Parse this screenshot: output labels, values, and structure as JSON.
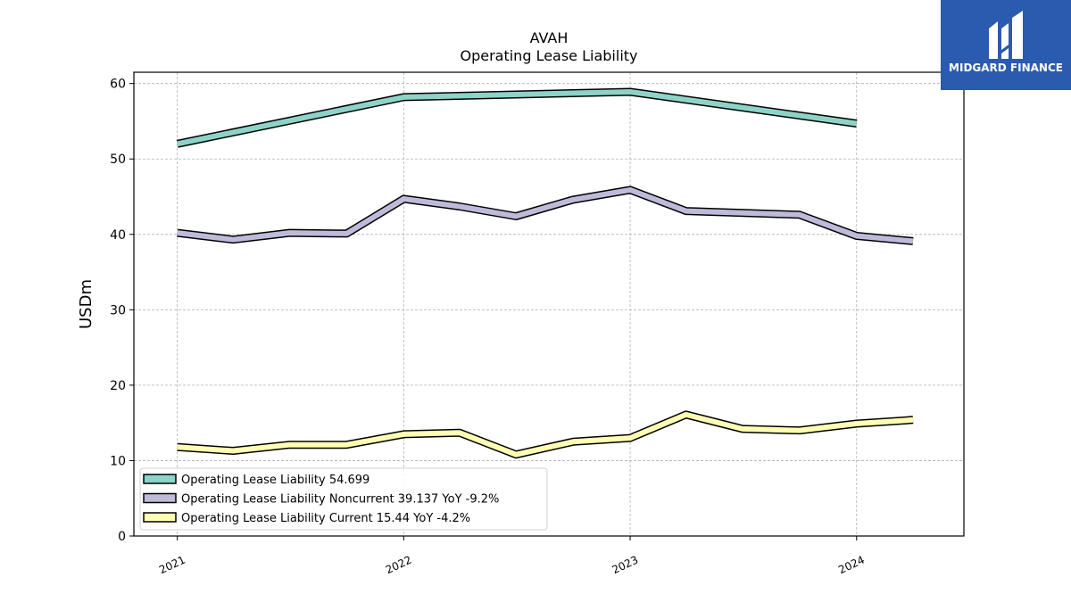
{
  "logo": {
    "text": "MIDGARD FINANCE"
  },
  "chart_data": {
    "type": "line",
    "title": "AVAH",
    "subtitle": "Operating Lease Liability",
    "xlabel": "",
    "ylabel": "USDm",
    "ylim": [
      0,
      61.5
    ],
    "yticks": [
      0,
      10,
      20,
      30,
      40,
      50,
      60
    ],
    "xlim": [
      "2020-10-23",
      "2024-06-22"
    ],
    "xticks": [
      {
        "date": "2021-01-01",
        "label": "2021"
      },
      {
        "date": "2022-01-01",
        "label": "2022"
      },
      {
        "date": "2023-01-01",
        "label": "2023"
      },
      {
        "date": "2024-01-01",
        "label": "2024"
      }
    ],
    "grid": true,
    "legend_position": "lower-left",
    "series": [
      {
        "name": "Operating Lease Liability  54.699",
        "color": "#8dd3c7",
        "points": [
          {
            "x": "2021-01-01",
            "y": 52.0
          },
          {
            "x": "2022-01-01",
            "y": 58.2
          },
          {
            "x": "2023-01-01",
            "y": 58.9
          },
          {
            "x": "2024-01-01",
            "y": 54.7
          }
        ]
      },
      {
        "name": "Operating Lease Liability Noncurrent  39.137 YoY -9.2%",
        "color": "#bebada",
        "points": [
          {
            "x": "2021-01-01",
            "y": 40.2
          },
          {
            "x": "2021-04-01",
            "y": 39.3
          },
          {
            "x": "2021-07-01",
            "y": 40.2
          },
          {
            "x": "2021-10-01",
            "y": 40.1
          },
          {
            "x": "2022-01-01",
            "y": 44.7
          },
          {
            "x": "2022-04-01",
            "y": 43.7
          },
          {
            "x": "2022-07-01",
            "y": 42.4
          },
          {
            "x": "2022-10-01",
            "y": 44.6
          },
          {
            "x": "2023-01-01",
            "y": 45.9
          },
          {
            "x": "2023-04-01",
            "y": 43.1
          },
          {
            "x": "2023-10-01",
            "y": 42.6
          },
          {
            "x": "2024-01-01",
            "y": 39.8
          },
          {
            "x": "2024-04-01",
            "y": 39.1
          }
        ]
      },
      {
        "name": "Operating Lease Liability Current  15.44 YoY -4.2%",
        "color": "#ffffb3",
        "points": [
          {
            "x": "2021-01-01",
            "y": 11.8
          },
          {
            "x": "2021-04-01",
            "y": 11.3
          },
          {
            "x": "2021-07-01",
            "y": 12.1
          },
          {
            "x": "2021-10-01",
            "y": 12.1
          },
          {
            "x": "2022-01-01",
            "y": 13.5
          },
          {
            "x": "2022-04-01",
            "y": 13.7
          },
          {
            "x": "2022-07-01",
            "y": 10.8
          },
          {
            "x": "2022-10-01",
            "y": 12.5
          },
          {
            "x": "2023-01-01",
            "y": 13.0
          },
          {
            "x": "2023-04-01",
            "y": 16.1
          },
          {
            "x": "2023-07-01",
            "y": 14.2
          },
          {
            "x": "2023-10-01",
            "y": 14.0
          },
          {
            "x": "2024-01-01",
            "y": 14.9
          },
          {
            "x": "2024-04-01",
            "y": 15.4
          }
        ]
      }
    ]
  }
}
